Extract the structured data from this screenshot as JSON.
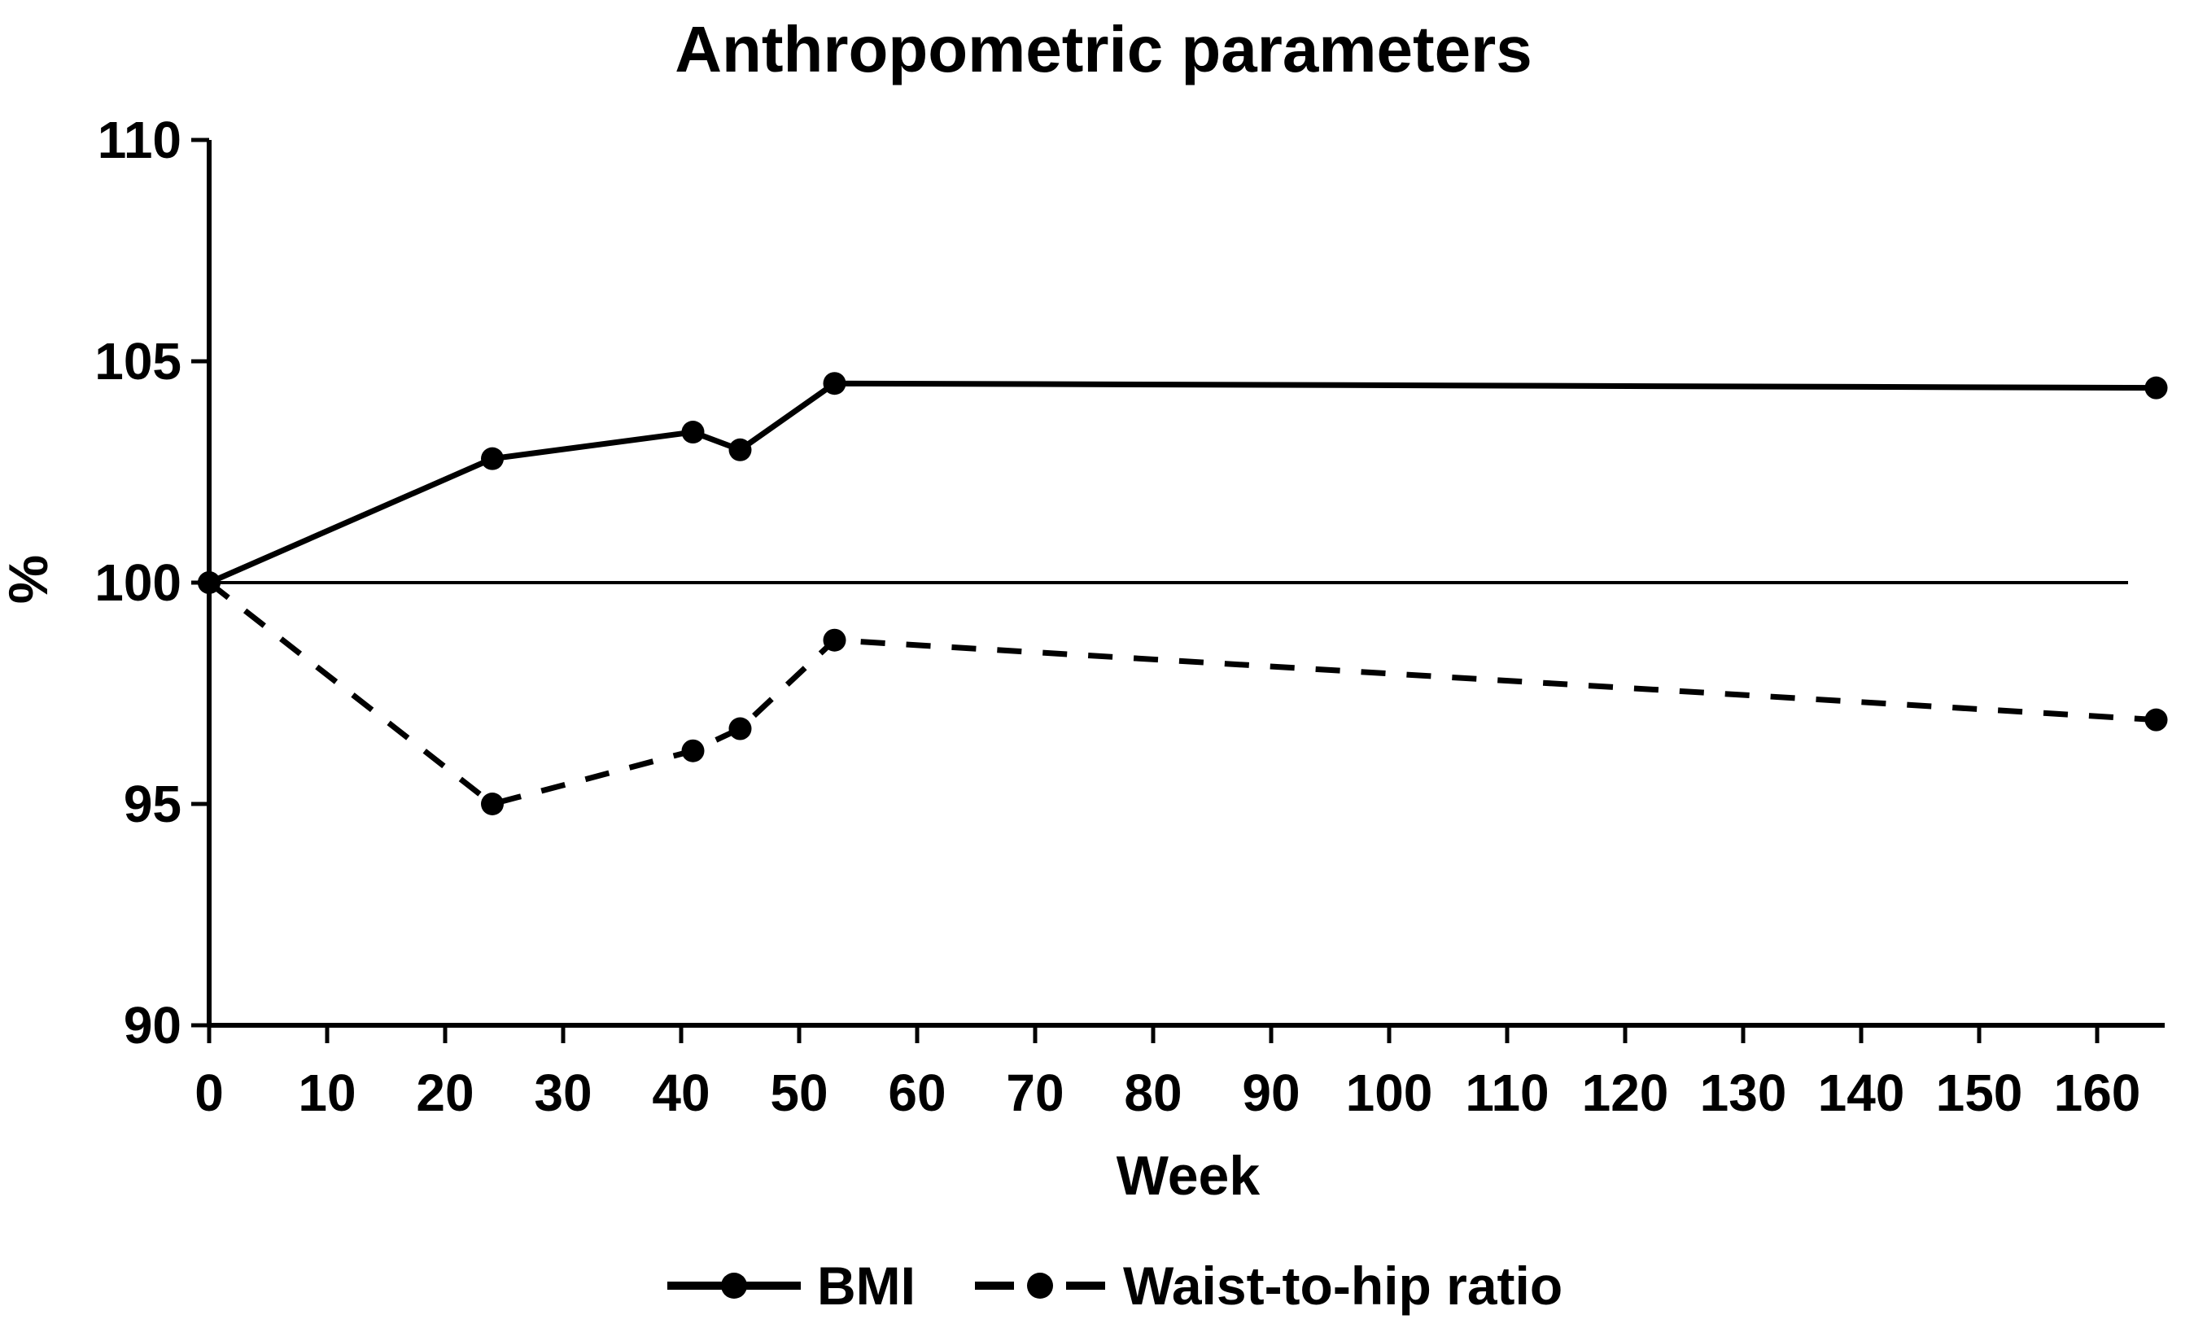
{
  "title": "Anthropometric parameters",
  "chart_data": {
    "type": "line",
    "title": "Anthropometric parameters",
    "xlabel": "Week",
    "ylabel": "%",
    "xlim": [
      0,
      168
    ],
    "ylim": [
      90,
      110
    ],
    "x_ticks": [
      0,
      10,
      20,
      30,
      40,
      50,
      60,
      70,
      80,
      90,
      100,
      110,
      120,
      130,
      140,
      150,
      160
    ],
    "y_ticks": [
      90,
      95,
      100,
      105,
      110
    ],
    "reference_line_y": 100,
    "grid": false,
    "legend_position": "bottom",
    "x": [
      0,
      24,
      41,
      45,
      53,
      165
    ],
    "series": [
      {
        "name": "BMI",
        "line_style": "solid",
        "marker": "filled-circle",
        "color": "#000000",
        "values": [
          100,
          102.8,
          103.4,
          103.0,
          104.5,
          104.4
        ]
      },
      {
        "name": "Waist-to-hip ratio",
        "line_style": "dashed",
        "marker": "filled-circle",
        "color": "#000000",
        "values": [
          100,
          95.0,
          96.2,
          96.7,
          98.7,
          96.9
        ]
      }
    ],
    "colors": {
      "foreground": "#000000",
      "background": "#ffffff"
    }
  }
}
